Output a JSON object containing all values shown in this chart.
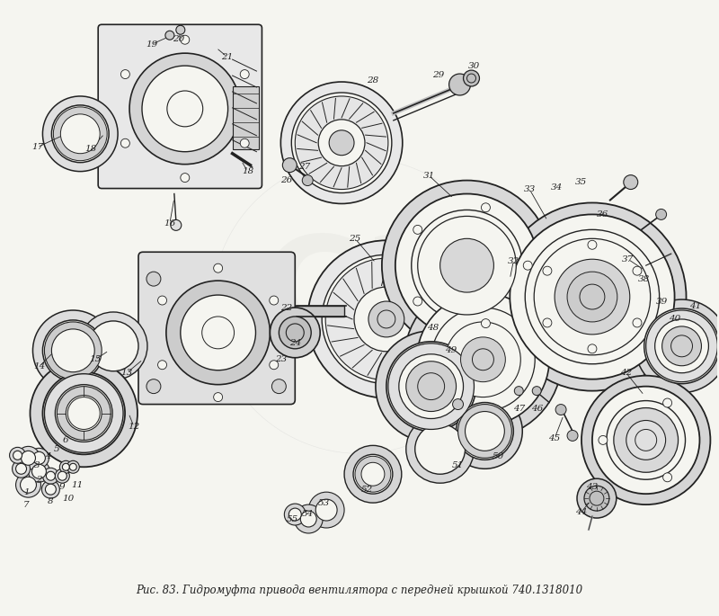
{
  "caption": "Рис. 83. Гидромуфта привода вентилятора с передней крышкой 740.1318010",
  "background_color": "#f5f5f0",
  "fig_width": 8.0,
  "fig_height": 6.85,
  "dpi": 100,
  "line_color": "#222222",
  "text_color": "#222222",
  "label_fontsize": 7.5,
  "caption_fontsize": 8.5,
  "watermark_text": "C3",
  "watermark_alpha": 0.06,
  "watermark_fontsize": 110
}
